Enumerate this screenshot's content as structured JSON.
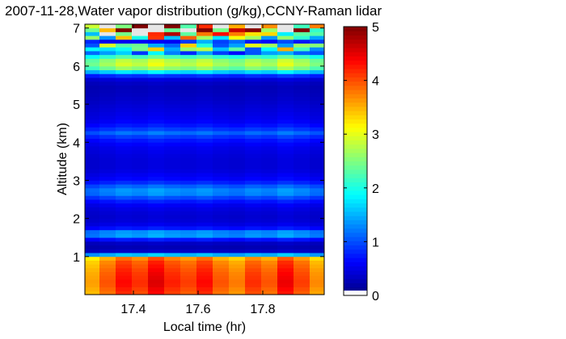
{
  "chart_data": {
    "type": "heatmap",
    "title": "2007-11-28,Water vapor distribution (g/kg),CCNY-Raman lidar",
    "xlabel": "Local time (hr)",
    "ylabel": "Altitude (km)",
    "xlim": [
      17.25,
      17.99
    ],
    "ylim": [
      0,
      7.1
    ],
    "xticks": [
      "17.4",
      "17.6",
      "17.8"
    ],
    "xtick_values": [
      17.4,
      17.6,
      17.8
    ],
    "yticks": [
      "1",
      "2",
      "3",
      "4",
      "5",
      "6",
      "7"
    ],
    "ytick_values": [
      1,
      2,
      3,
      4,
      5,
      6,
      7
    ],
    "colorbar": {
      "min": 0,
      "max": 5,
      "ticks": [
        "0",
        "1",
        "2",
        "3",
        "4",
        "5"
      ],
      "tick_values": [
        0,
        1,
        2,
        3,
        4,
        5
      ],
      "colormap": "jet"
    },
    "times": [
      17.27,
      17.32,
      17.37,
      17.42,
      17.47,
      17.52,
      17.57,
      17.62,
      17.67,
      17.72,
      17.77,
      17.82,
      17.87,
      17.92,
      17.97
    ],
    "altitude_profile_km": [
      [
        0.0,
        3.6
      ],
      [
        0.3,
        3.8
      ],
      [
        0.6,
        3.7
      ],
      [
        0.9,
        3.5
      ],
      [
        1.0,
        3.2
      ],
      [
        1.05,
        1.4
      ],
      [
        1.15,
        0.3
      ],
      [
        1.3,
        0.2
      ],
      [
        1.4,
        0.4
      ],
      [
        1.5,
        0.9
      ],
      [
        1.6,
        1.6
      ],
      [
        1.7,
        0.8
      ],
      [
        1.8,
        0.5
      ],
      [
        2.0,
        0.35
      ],
      [
        2.2,
        0.4
      ],
      [
        2.4,
        0.55
      ],
      [
        2.55,
        0.9
      ],
      [
        2.7,
        1.3
      ],
      [
        2.85,
        1.0
      ],
      [
        3.0,
        0.6
      ],
      [
        3.3,
        0.4
      ],
      [
        3.6,
        0.4
      ],
      [
        3.9,
        0.5
      ],
      [
        4.1,
        0.7
      ],
      [
        4.25,
        1.05
      ],
      [
        4.4,
        0.7
      ],
      [
        4.6,
        0.5
      ],
      [
        4.9,
        0.4
      ],
      [
        5.2,
        0.3
      ],
      [
        5.5,
        0.25
      ],
      [
        5.7,
        0.45
      ],
      [
        5.8,
        1.1
      ],
      [
        5.9,
        2.0
      ],
      [
        6.0,
        2.6
      ],
      [
        6.2,
        2.4
      ],
      [
        6.35,
        1.2
      ],
      [
        6.5,
        2.9
      ],
      [
        6.65,
        1.0
      ],
      [
        6.8,
        3.5
      ],
      [
        7.0,
        4.8
      ]
    ],
    "time_modulation": [
      0.95,
      1.05,
      1.15,
      1.1,
      1.2,
      1.12,
      1.08,
      1.15,
      1.05,
      1.0,
      1.1,
      1.05,
      1.18,
      1.08,
      0.98
    ]
  }
}
